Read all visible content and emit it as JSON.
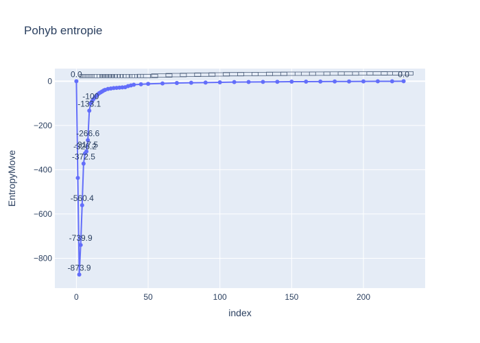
{
  "chart_data": {
    "type": "line",
    "title": "Pohyb entropie",
    "xlabel": "index",
    "ylabel": "EntropyMove",
    "xlim": [
      -15,
      243
    ],
    "ylim": [
      -935,
      57
    ],
    "x_ticks": [
      0,
      50,
      100,
      150,
      200
    ],
    "y_ticks": [
      0,
      -200,
      -400,
      -600,
      -800
    ],
    "grid": true,
    "colors": {
      "line": "#636efa",
      "plot_bg": "#e5ecf6",
      "grid": "#ffffff",
      "text": "#2a3f5f"
    },
    "series": [
      {
        "x": [
          0,
          1,
          2,
          3,
          4,
          5,
          6,
          7,
          8,
          9,
          10,
          11,
          12,
          13,
          14,
          15,
          16,
          17,
          18,
          19,
          20,
          22,
          24,
          26,
          28,
          30,
          32,
          34,
          36,
          38,
          40,
          45,
          50,
          60,
          70,
          80,
          90,
          100,
          110,
          120,
          130,
          140,
          150,
          160,
          170,
          180,
          190,
          200,
          210,
          220,
          228
        ],
        "values": [
          0.0,
          -436.9,
          -873.9,
          -739.9,
          -560.4,
          -372.5,
          -326.2,
          -317.5,
          -266.6,
          -133.1,
          -100.0,
          -90.0,
          -80.0,
          -72.0,
          -65.0,
          -59.0,
          -54.0,
          -50.0,
          -46.0,
          -42.0,
          -39.0,
          -35.0,
          -33.0,
          -31.0,
          -30.0,
          -29.0,
          -28.0,
          -27.0,
          -22.0,
          -19.0,
          -16.0,
          -14.0,
          -12.0,
          -10.0,
          -8.0,
          -7.0,
          -6.0,
          -5.0,
          -4.0,
          -3.5,
          -3.0,
          -2.5,
          -2.0,
          -1.8,
          -1.5,
          -1.2,
          -1.0,
          -0.8,
          -0.5,
          -0.2,
          0.0
        ]
      }
    ],
    "data_labels": [
      {
        "x": 0,
        "y": 0.0,
        "text": "0.0"
      },
      {
        "x": 2,
        "y": -873.9,
        "text": "-873.9"
      },
      {
        "x": 3,
        "y": -739.9,
        "text": "-739.9"
      },
      {
        "x": 4,
        "y": -560.4,
        "text": "-560.4"
      },
      {
        "x": 5,
        "y": -372.5,
        "text": "-372.5"
      },
      {
        "x": 6,
        "y": -326.2,
        "text": "-326.2"
      },
      {
        "x": 7,
        "y": -317.5,
        "text": "-317.5"
      },
      {
        "x": 8,
        "y": -266.6,
        "text": "-266.6"
      },
      {
        "x": 9,
        "y": -133.1,
        "text": "-133.1"
      },
      {
        "x": 10,
        "y": -100.0,
        "text": "-100"
      },
      {
        "x": 228,
        "y": 0.0,
        "text": "0.0"
      }
    ]
  }
}
